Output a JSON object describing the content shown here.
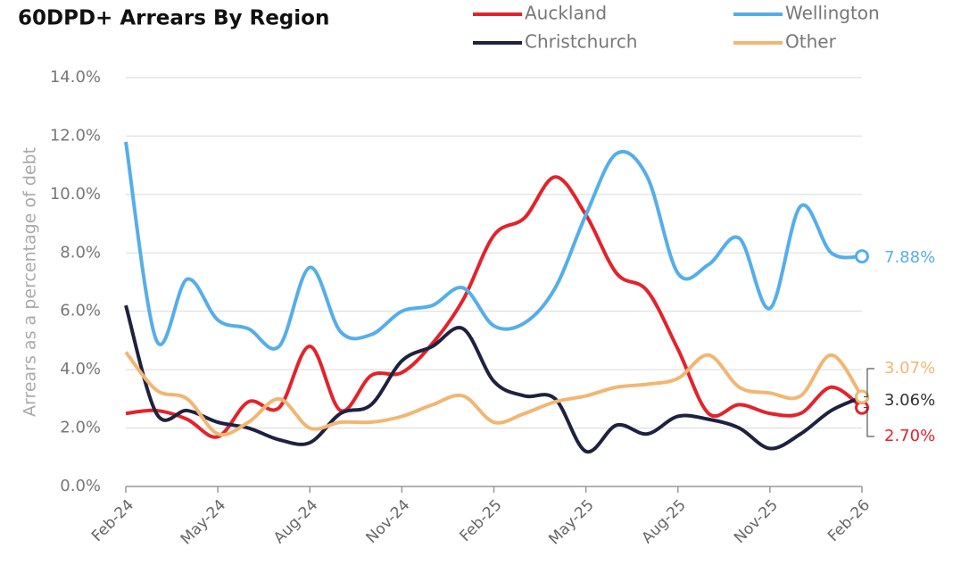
{
  "chart_data": {
    "type": "line",
    "title": "60DPD+ Arrears By Region",
    "y_axis_label": "Arrears as a percentage of debt",
    "categories": [
      "Feb-24",
      null,
      null,
      "May-24",
      null,
      null,
      "Aug-24",
      null,
      null,
      "Nov-24",
      null,
      null,
      "Feb-25",
      null,
      null,
      "May-25",
      null,
      null,
      "Aug-25",
      null,
      null,
      "Nov-25",
      null,
      null,
      "Feb-26"
    ],
    "ylim": [
      0,
      14
    ],
    "yticks": [
      {
        "value": 0,
        "label": "0.0%"
      },
      {
        "value": 2,
        "label": "2.0%"
      },
      {
        "value": 4,
        "label": "4.0%"
      },
      {
        "value": 6,
        "label": "6.0%"
      },
      {
        "value": 8,
        "label": "8.0%"
      },
      {
        "value": 10,
        "label": "10.0%"
      },
      {
        "value": 12,
        "label": "12.0%"
      },
      {
        "value": 14,
        "label": "14.0%"
      }
    ],
    "grid": true,
    "series": [
      {
        "name": "Auckland",
        "color": "#e3232b",
        "values": [
          2.5,
          2.6,
          2.3,
          1.7,
          2.9,
          2.7,
          4.8,
          2.6,
          3.8,
          3.9,
          4.9,
          6.4,
          8.6,
          9.2,
          10.6,
          9.3,
          7.3,
          6.7,
          4.7,
          2.5,
          2.8,
          2.5,
          2.5,
          3.4,
          2.7
        ],
        "value_labels": [
          null,
          null,
          null,
          null,
          null,
          null,
          null,
          null,
          null,
          null,
          null,
          null,
          null,
          null,
          null,
          null,
          null,
          null,
          null,
          null,
          null,
          null,
          null,
          null,
          "2.70%"
        ]
      },
      {
        "name": "Wellington",
        "color": "#55aeea",
        "values": [
          11.8,
          5.0,
          7.1,
          5.7,
          5.4,
          4.8,
          7.5,
          5.3,
          5.2,
          6.0,
          6.2,
          6.8,
          5.5,
          5.6,
          6.8,
          9.3,
          11.4,
          10.6,
          7.3,
          7.6,
          8.5,
          6.1,
          9.6,
          8.0,
          7.88
        ],
        "value_labels": [
          null,
          null,
          null,
          null,
          null,
          null,
          null,
          null,
          null,
          null,
          null,
          null,
          null,
          null,
          null,
          null,
          null,
          null,
          null,
          null,
          null,
          null,
          null,
          null,
          "7.88%"
        ]
      },
      {
        "name": "Christchurch",
        "color": "#1e2240",
        "values": [
          6.2,
          2.5,
          2.6,
          2.2,
          2.0,
          1.6,
          1.5,
          2.5,
          2.8,
          4.3,
          4.8,
          5.4,
          3.6,
          3.1,
          3.0,
          1.2,
          2.1,
          1.8,
          2.4,
          2.3,
          2.0,
          1.3,
          1.8,
          2.6,
          3.06
        ],
        "value_labels": [
          null,
          null,
          null,
          null,
          null,
          null,
          null,
          null,
          null,
          null,
          null,
          null,
          null,
          null,
          null,
          null,
          null,
          null,
          null,
          null,
          null,
          null,
          null,
          null,
          "3.06%"
        ]
      },
      {
        "name": "Other",
        "color": "#f2b673",
        "values": [
          4.6,
          3.3,
          3.0,
          1.8,
          2.2,
          3.0,
          2.0,
          2.2,
          2.2,
          2.4,
          2.8,
          3.1,
          2.2,
          2.5,
          2.9,
          3.1,
          3.4,
          3.5,
          3.7,
          4.5,
          3.4,
          3.2,
          3.1,
          4.5,
          3.07
        ],
        "value_labels": [
          null,
          null,
          null,
          null,
          null,
          null,
          null,
          null,
          null,
          null,
          null,
          null,
          null,
          null,
          null,
          null,
          null,
          null,
          null,
          null,
          null,
          null,
          null,
          null,
          "3.07%"
        ]
      }
    ]
  }
}
